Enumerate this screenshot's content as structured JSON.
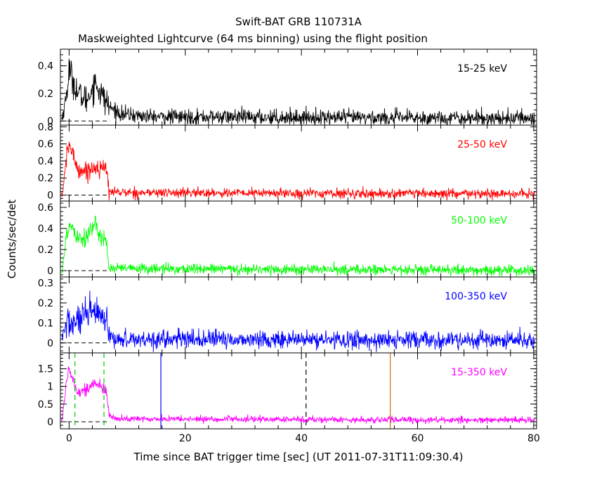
{
  "chart_data": {
    "type": "line",
    "title": "Swift-BAT GRB 110731A",
    "subtitle": "Maskweighted Lightcurve (64 ms binning) using the flight position",
    "xlabel": "Time since BAT trigger time [sec] (UT 2011-07-31T11:09:30.4)",
    "ylabel": "Counts/sec/det",
    "xlim": [
      -1.5,
      80.5
    ],
    "x_ticks": [
      0,
      20,
      40,
      60,
      80
    ],
    "grid": false,
    "bin_sec": 0.064,
    "panels": [
      {
        "band": "15-25 keV",
        "color": "#000000",
        "ylim": [
          -0.03,
          0.52
        ],
        "y_ticks": [
          0,
          0.2,
          0.4
        ],
        "profile": [
          {
            "t": -1.2,
            "v": 0.02
          },
          {
            "t": -0.4,
            "v": 0.2
          },
          {
            "t": 0.0,
            "v": 0.38
          },
          {
            "t": 0.6,
            "v": 0.3
          },
          {
            "t": 1.5,
            "v": 0.2
          },
          {
            "t": 3.0,
            "v": 0.15
          },
          {
            "t": 4.5,
            "v": 0.28
          },
          {
            "t": 5.5,
            "v": 0.2
          },
          {
            "t": 7.0,
            "v": 0.1
          },
          {
            "t": 9.0,
            "v": 0.05
          },
          {
            "t": 14.0,
            "v": 0.03
          },
          {
            "t": 80.0,
            "v": 0.02
          }
        ],
        "noise": 0.028
      },
      {
        "band": "25-50 keV",
        "color": "#ff0000",
        "ylim": [
          -0.07,
          0.82
        ],
        "y_ticks": [
          0,
          0.2,
          0.4,
          0.6,
          0.8
        ],
        "profile": [
          {
            "t": -1.2,
            "v": 0.0
          },
          {
            "t": -0.4,
            "v": 0.45
          },
          {
            "t": 0.0,
            "v": 0.6
          },
          {
            "t": 0.8,
            "v": 0.45
          },
          {
            "t": 1.5,
            "v": 0.3
          },
          {
            "t": 3.0,
            "v": 0.28
          },
          {
            "t": 4.5,
            "v": 0.33
          },
          {
            "t": 6.4,
            "v": 0.3
          },
          {
            "t": 6.9,
            "v": 0.05
          },
          {
            "t": 9.0,
            "v": 0.03
          },
          {
            "t": 80.0,
            "v": 0.01
          }
        ],
        "noise": 0.028
      },
      {
        "band": "50-100 keV",
        "color": "#00ff00",
        "ylim": [
          -0.06,
          0.66
        ],
        "y_ticks": [
          0,
          0.2,
          0.4,
          0.6
        ],
        "profile": [
          {
            "t": -1.2,
            "v": 0.0
          },
          {
            "t": -0.4,
            "v": 0.35
          },
          {
            "t": 0.2,
            "v": 0.45
          },
          {
            "t": 1.2,
            "v": 0.35
          },
          {
            "t": 2.5,
            "v": 0.3
          },
          {
            "t": 4.2,
            "v": 0.42
          },
          {
            "t": 6.4,
            "v": 0.28
          },
          {
            "t": 6.9,
            "v": 0.02
          },
          {
            "t": 80.0,
            "v": 0.0
          }
        ],
        "noise": 0.025
      },
      {
        "band": "100-350 keV",
        "color": "#0000ff",
        "ylim": [
          -0.05,
          0.33
        ],
        "y_ticks": [
          0,
          0.1,
          0.2,
          0.3
        ],
        "profile": [
          {
            "t": -1.2,
            "v": 0.02
          },
          {
            "t": -0.5,
            "v": 0.1
          },
          {
            "t": 1.0,
            "v": 0.1
          },
          {
            "t": 2.5,
            "v": 0.12
          },
          {
            "t": 4.2,
            "v": 0.16
          },
          {
            "t": 6.4,
            "v": 0.1
          },
          {
            "t": 6.9,
            "v": 0.02
          },
          {
            "t": 80.0,
            "v": 0.01
          }
        ],
        "noise": 0.022
      },
      {
        "band": "15-350 keV",
        "color": "#ff00ff",
        "ylim": [
          -0.2,
          1.95
        ],
        "y_ticks": [
          0,
          0.5,
          1,
          1.5
        ],
        "profile": [
          {
            "t": -1.2,
            "v": 0.05
          },
          {
            "t": -0.4,
            "v": 1.2
          },
          {
            "t": 0.0,
            "v": 1.55
          },
          {
            "t": 0.8,
            "v": 1.15
          },
          {
            "t": 1.5,
            "v": 0.85
          },
          {
            "t": 3.0,
            "v": 0.9
          },
          {
            "t": 4.5,
            "v": 1.1
          },
          {
            "t": 6.4,
            "v": 0.85
          },
          {
            "t": 6.9,
            "v": 0.15
          },
          {
            "t": 9.0,
            "v": 0.08
          },
          {
            "t": 80.0,
            "v": 0.04
          }
        ],
        "noise": 0.045
      }
    ],
    "markers": [
      {
        "t": 1.0,
        "color": "#00cc00",
        "style": "dashed"
      },
      {
        "t": 6.0,
        "color": "#00cc00",
        "style": "dashed"
      },
      {
        "t": 15.8,
        "color": "#0000ff",
        "style": "solid"
      },
      {
        "t": 40.8,
        "color": "#000000",
        "style": "dashed"
      },
      {
        "t": 55.3,
        "color": "#c87800",
        "style": "solid"
      }
    ],
    "zero_line": {
      "x_from": -1.5,
      "x_to": 7.0,
      "style": "dashed"
    }
  }
}
